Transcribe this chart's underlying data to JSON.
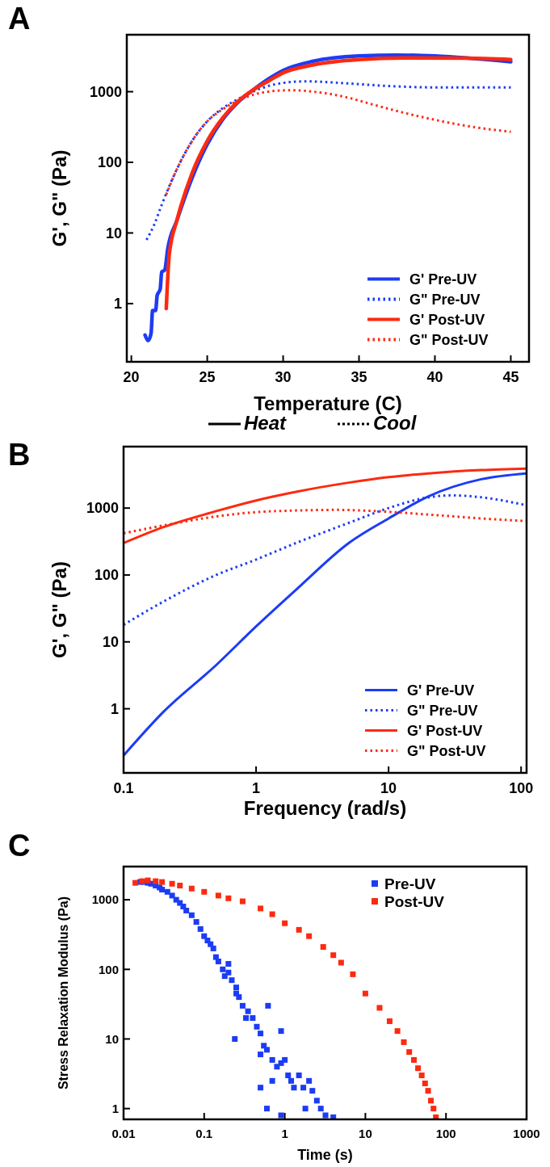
{
  "chart_data": [
    {
      "type": "line",
      "title": "A",
      "xlabel": "Temperature (C)",
      "ylabel": "G', G\" (Pa)",
      "log": true,
      "legend": "bottom right",
      "xlim": [
        19.7,
        46.2
      ],
      "xticks": [
        20,
        25,
        30,
        35,
        40,
        45
      ],
      "ylim": [
        0.15,
        6400
      ],
      "yticks": [
        1,
        10,
        100,
        1000
      ],
      "annotations": [
        "Heat",
        "Cool"
      ],
      "series": [
        {
          "name": "G' Pre-UV",
          "color": "#1c3cf4",
          "line_style": "solid",
          "x": [
            20.9,
            21.1,
            21.3,
            21.4,
            21.6,
            21.7,
            21.9,
            22.0,
            22.2,
            22.4,
            23,
            24,
            25,
            26,
            27,
            28,
            29,
            30,
            32,
            35,
            37.5,
            40,
            43,
            45
          ],
          "values": [
            0.36,
            0.3,
            0.38,
            0.8,
            0.8,
            1.3,
            1.6,
            2.8,
            3,
            6,
            15,
            60,
            180,
            400,
            700,
            1050,
            1500,
            2000,
            2700,
            3200,
            3300,
            3200,
            null,
            2650
          ]
        },
        {
          "name": "G\" Pre-UV",
          "color": "#1c3cf4",
          "line_style": "dotted",
          "x": [
            21,
            21.5,
            22,
            23,
            24,
            25,
            26,
            27,
            28,
            29,
            30,
            31.5,
            34,
            37,
            40,
            45
          ],
          "values": [
            8,
            13,
            25,
            80,
            200,
            380,
            580,
            780,
            1000,
            1200,
            1330,
            1400,
            1320,
            1200,
            1150,
            1150
          ]
        },
        {
          "name": "G' Post-UV",
          "color": "#fc2a10",
          "line_style": "solid",
          "x": [
            22.3,
            22.5,
            23,
            24,
            25,
            26,
            27,
            28,
            29,
            30,
            32,
            35,
            38,
            42,
            45
          ],
          "values": [
            0.85,
            5,
            15,
            70,
            200,
            420,
            720,
            1050,
            1400,
            1850,
            2400,
            2850,
            3000,
            2980,
            2850
          ]
        },
        {
          "name": "G\" Post-UV",
          "color": "#fc2a10",
          "line_style": "dotted",
          "x": [
            22.3,
            23,
            24,
            25,
            26,
            27,
            28,
            29,
            30.5,
            32,
            34,
            36,
            38,
            40,
            42,
            45
          ],
          "values": [
            35,
            80,
            200,
            380,
            560,
            740,
            900,
            1000,
            1050,
            1000,
            850,
            650,
            500,
            400,
            330,
            270
          ]
        }
      ]
    },
    {
      "type": "line",
      "title": "B",
      "xlabel": "Frequency (rad/s)",
      "ylabel": "G', G\"  (Pa)",
      "log": "xy",
      "legend": "bottom right",
      "xlim": [
        0.1,
        110
      ],
      "xticks": [
        0.1,
        1,
        10,
        100
      ],
      "ylim": [
        0.11,
        8300
      ],
      "yticks": [
        1,
        10,
        100,
        1000
      ],
      "series": [
        {
          "name": "G' Pre-UV",
          "color": "#1c3cf4",
          "line_style": "solid",
          "x": [
            0.1,
            0.2,
            0.5,
            1,
            2,
            5,
            10,
            20,
            50,
            110
          ],
          "values": [
            0.2,
            0.9,
            4.5,
            17,
            60,
            300,
            700,
            1500,
            2700,
            3300
          ]
        },
        {
          "name": "G\" Pre-UV",
          "color": "#1c3cf4",
          "line_style": "dotted",
          "x": [
            0.1,
            0.2,
            0.5,
            1,
            2,
            5,
            10,
            20,
            30,
            50,
            110
          ],
          "values": [
            18,
            40,
            100,
            170,
            300,
            600,
            1000,
            1450,
            1550,
            1450,
            1100
          ]
        },
        {
          "name": "G' Post-UV",
          "color": "#fc2a10",
          "line_style": "solid",
          "x": [
            0.1,
            0.2,
            0.5,
            1,
            2,
            5,
            10,
            20,
            50,
            110
          ],
          "values": [
            300,
            520,
            900,
            1300,
            1750,
            2400,
            2900,
            3300,
            3700,
            3900
          ]
        },
        {
          "name": "G\" Post-UV",
          "color": "#fc2a10",
          "line_style": "dotted",
          "x": [
            0.1,
            0.2,
            0.5,
            1,
            2,
            4,
            10,
            20,
            50,
            110
          ],
          "values": [
            420,
            550,
            750,
            870,
            920,
            940,
            880,
            800,
            700,
            640
          ]
        }
      ]
    },
    {
      "type": "scatter",
      "title": "C",
      "xlabel": "Time (s)",
      "ylabel": "Stress Relaxation Modulus (Pa)",
      "log": "xy",
      "legend": "top right",
      "marker": "square",
      "xlim": [
        0.01,
        1000
      ],
      "xticks": [
        0.01,
        0.1,
        1,
        10,
        100,
        1000
      ],
      "ylim": [
        0.7,
        3000
      ],
      "yticks": [
        1,
        10,
        100,
        1000
      ],
      "series": [
        {
          "name": "Pre-UV",
          "color": "#1c3cf4",
          "x": [
            0.016,
            0.018,
            0.02,
            0.022,
            0.025,
            0.028,
            0.03,
            0.035,
            0.04,
            0.045,
            0.05,
            0.055,
            0.06,
            0.07,
            0.08,
            0.09,
            0.1,
            0.11,
            0.12,
            0.13,
            0.14,
            0.15,
            0.17,
            0.18,
            0.2,
            0.2,
            0.22,
            0.25,
            0.25,
            0.27,
            0.24,
            0.3,
            0.33,
            0.35,
            0.4,
            0.45,
            0.5,
            0.55,
            0.6,
            0.62,
            0.5,
            0.7,
            0.8,
            0.9,
            1.0,
            1.1,
            1.2,
            0.7,
            0.5,
            0.9,
            1.3,
            1.5,
            1.7,
            2,
            2.2,
            2.5,
            2.8,
            3.2,
            4,
            0.6,
            0.9,
            1.8
          ],
          "values": [
            1800,
            1800,
            1750,
            1700,
            1600,
            1500,
            1400,
            1300,
            1150,
            1000,
            900,
            800,
            700,
            600,
            480,
            380,
            300,
            260,
            230,
            200,
            150,
            130,
            100,
            80,
            90,
            120,
            70,
            55,
            45,
            40,
            10,
            30,
            20,
            25,
            20,
            15,
            12,
            8,
            7,
            30,
            6,
            5,
            4,
            4.5,
            5,
            3,
            2.5,
            2.5,
            2,
            13,
            2,
            3,
            2,
            2.5,
            1.8,
            1.3,
            1,
            0.8,
            0.75,
            1,
            0.8,
            1
          ]
        },
        {
          "name": "Post-UV",
          "color": "#fc2a10",
          "x": [
            0.014,
            0.017,
            0.02,
            0.025,
            0.03,
            0.04,
            0.05,
            0.07,
            0.1,
            0.15,
            0.2,
            0.3,
            0.5,
            0.7,
            1,
            1.5,
            2,
            3,
            4,
            5,
            7,
            10,
            15,
            20,
            25,
            30,
            35,
            40,
            45,
            50,
            55,
            60,
            65,
            70,
            75
          ],
          "values": [
            1750,
            1850,
            1900,
            1850,
            1800,
            1700,
            1600,
            1450,
            1300,
            1150,
            1050,
            950,
            750,
            620,
            460,
            370,
            300,
            210,
            160,
            125,
            85,
            45,
            28,
            18,
            13,
            9,
            6.5,
            5,
            3.8,
            3,
            2.3,
            1.8,
            1.3,
            1,
            0.75
          ]
        }
      ]
    }
  ]
}
